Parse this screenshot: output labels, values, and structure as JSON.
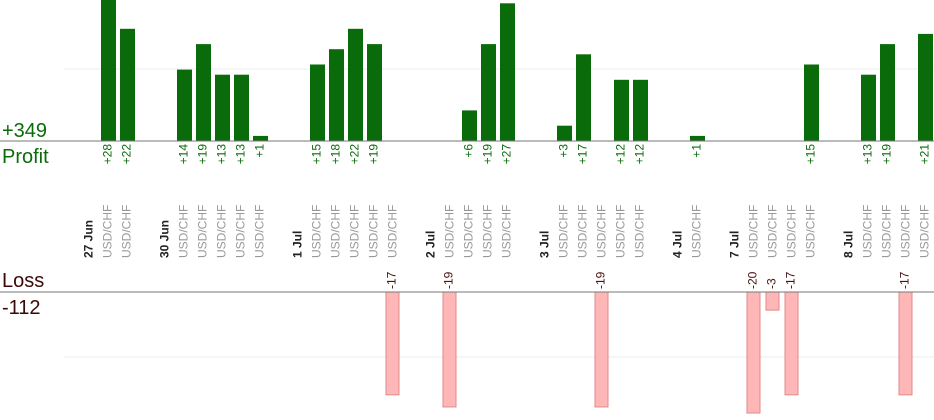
{
  "chart_data": {
    "type": "bar",
    "profit_total": "+349",
    "profit_label": "Profit",
    "loss_label": "Loss",
    "loss_total": "-112",
    "colors": {
      "profit": "#0a6b0a",
      "loss": "#ffb6b6",
      "loss_stroke": "#e08a8a",
      "profit_text": "#0a6b0a",
      "loss_text": "#4a1010"
    },
    "days": [
      {
        "label": "27 Jun",
        "trades": [
          {
            "pair": "USD/CHF",
            "profit": 28,
            "loss": null
          },
          {
            "pair": "USD/CHF",
            "profit": 22,
            "loss": null
          }
        ]
      },
      {
        "label": "30 Jun",
        "trades": [
          {
            "pair": "USD/CHF",
            "profit": 14,
            "loss": null
          },
          {
            "pair": "USD/CHF",
            "profit": 19,
            "loss": null
          },
          {
            "pair": "USD/CHF",
            "profit": 13,
            "loss": null
          },
          {
            "pair": "USD/CHF",
            "profit": 13,
            "loss": null
          },
          {
            "pair": "USD/CHF",
            "profit": 1,
            "loss": null
          }
        ]
      },
      {
        "label": "1 Jul",
        "trades": [
          {
            "pair": "USD/CHF",
            "profit": 15,
            "loss": null
          },
          {
            "pair": "USD/CHF",
            "profit": 18,
            "loss": null
          },
          {
            "pair": "USD/CHF",
            "profit": 22,
            "loss": null
          },
          {
            "pair": "USD/CHF",
            "profit": 19,
            "loss": null
          },
          {
            "pair": "USD/CHF",
            "profit": null,
            "loss": -17
          }
        ]
      },
      {
        "label": "2 Jul",
        "trades": [
          {
            "pair": "USD/CHF",
            "profit": null,
            "loss": -19
          },
          {
            "pair": "USD/CHF",
            "profit": 6,
            "loss": null
          },
          {
            "pair": "USD/CHF",
            "profit": 19,
            "loss": null
          },
          {
            "pair": "USD/CHF",
            "profit": 27,
            "loss": null
          }
        ]
      },
      {
        "label": "3 Jul",
        "trades": [
          {
            "pair": "USD/CHF",
            "profit": 3,
            "loss": null
          },
          {
            "pair": "USD/CHF",
            "profit": 17,
            "loss": null
          },
          {
            "pair": "USD/CHF",
            "profit": null,
            "loss": -19
          },
          {
            "pair": "USD/CHF",
            "profit": 12,
            "loss": null
          },
          {
            "pair": "USD/CHF",
            "profit": 12,
            "loss": null
          }
        ]
      },
      {
        "label": "4 Jul",
        "trades": [
          {
            "pair": "USD/CHF",
            "profit": 1,
            "loss": null
          }
        ]
      },
      {
        "label": "7 Jul",
        "trades": [
          {
            "pair": "USD/CHF",
            "profit": null,
            "loss": -20
          },
          {
            "pair": "USD/CHF",
            "profit": null,
            "loss": -3
          },
          {
            "pair": "USD/CHF",
            "profit": null,
            "loss": -17
          },
          {
            "pair": "USD/CHF",
            "profit": 15,
            "loss": null
          }
        ]
      },
      {
        "label": "8 Jul",
        "trades": [
          {
            "pair": "USD/CHF",
            "profit": 13,
            "loss": null
          },
          {
            "pair": "USD/CHF",
            "profit": 19,
            "loss": null
          },
          {
            "pair": "USD/CHF",
            "profit": null,
            "loss": -17
          },
          {
            "pair": "USD/CHF",
            "profit": 21,
            "loss": null
          }
        ]
      }
    ]
  }
}
